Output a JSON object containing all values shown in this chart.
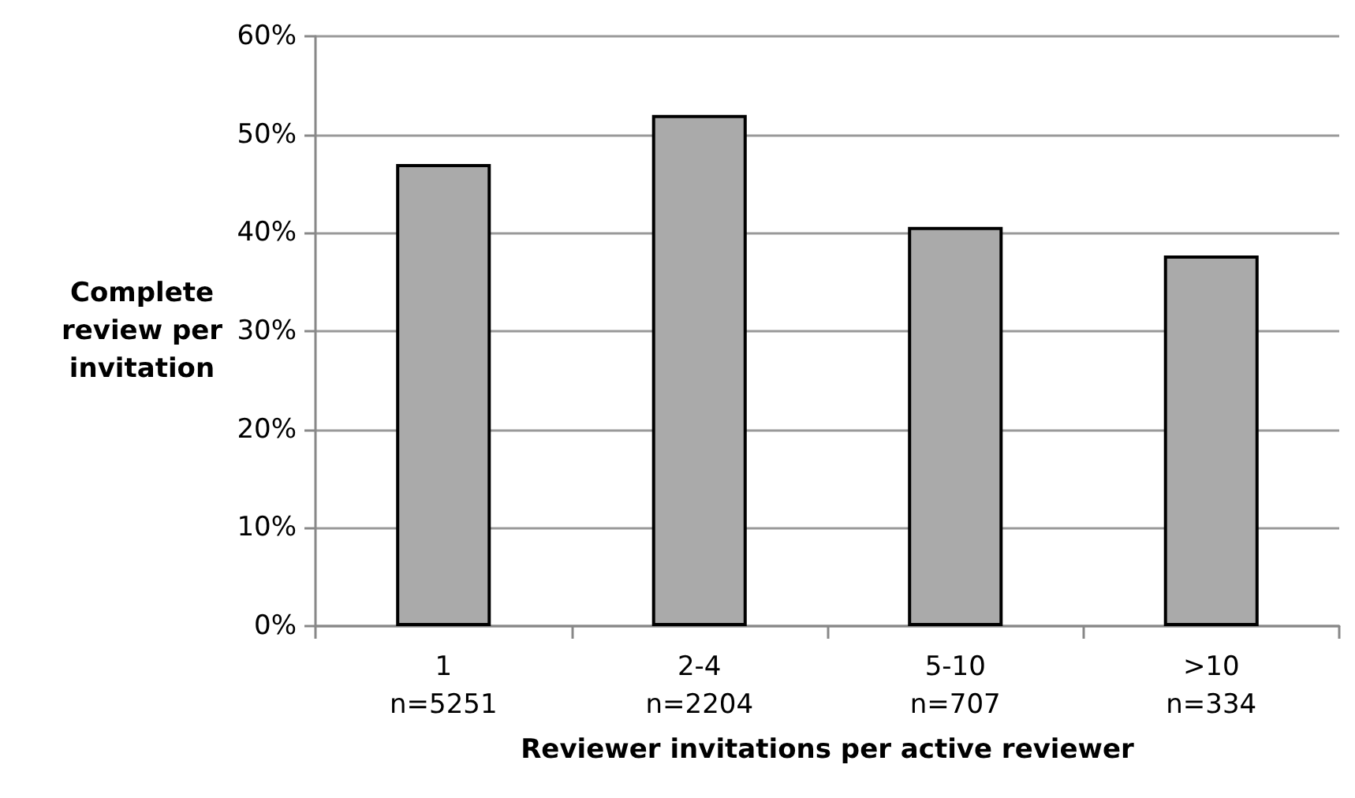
{
  "chart_data": {
    "type": "bar",
    "xlabel": "Reviewer invitations per active reviewer",
    "ylabel": "Complete\nreview per\ninvitation",
    "categories": [
      "1\nn=5251",
      "2-4\nn=2204",
      "5-10\nn=707",
      ">10\nn=334"
    ],
    "values": [
      47.0,
      52.0,
      40.6,
      37.7
    ],
    "color": "#aaaaaa",
    "ylim": [
      0,
      60
    ],
    "yticks": [
      {
        "value": 0,
        "label": "0%"
      },
      {
        "value": 10,
        "label": "10%"
      },
      {
        "value": 20,
        "label": "20%"
      },
      {
        "value": 30,
        "label": "30%"
      },
      {
        "value": 40,
        "label": "40%"
      },
      {
        "value": 50,
        "label": "50%"
      },
      {
        "value": 60,
        "label": "60%"
      }
    ],
    "grid": "y"
  }
}
